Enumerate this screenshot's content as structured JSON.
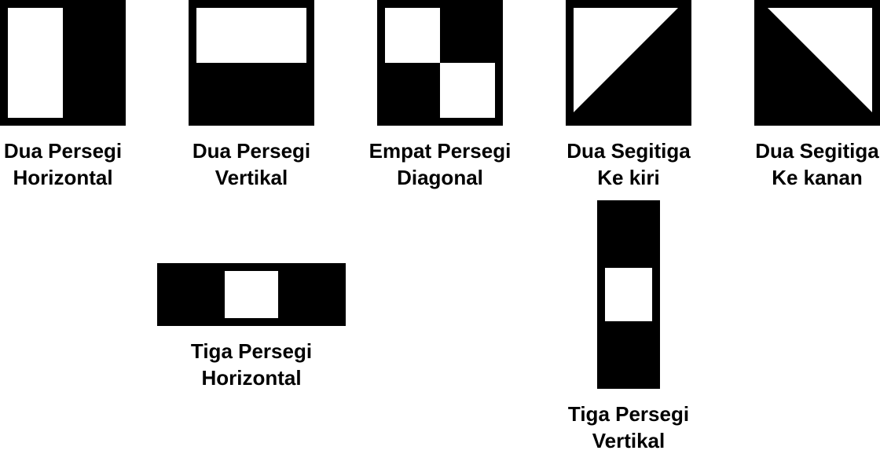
{
  "colors": {
    "dark_region": "#000000",
    "light_region": "#ffffff",
    "label_text": "#000000"
  },
  "features": [
    {
      "id": "two-rect-horizontal",
      "line1": "Dua Persegi",
      "line2": "Horizontal"
    },
    {
      "id": "two-rect-vertical",
      "line1": "Dua Persegi",
      "line2": "Vertikal"
    },
    {
      "id": "four-rect-diagonal",
      "line1": "Empat Persegi",
      "line2": "Diagonal"
    },
    {
      "id": "two-triangle-left",
      "line1": "Dua Segitiga",
      "line2": "Ke kiri"
    },
    {
      "id": "two-triangle-right",
      "line1": "Dua Segitiga",
      "line2": "Ke kanan"
    },
    {
      "id": "three-rect-horizontal",
      "line1": "Tiga Persegi",
      "line2": "Horizontal"
    },
    {
      "id": "three-rect-vertical",
      "line1": "Tiga Persegi",
      "line2": "Vertikal"
    }
  ]
}
